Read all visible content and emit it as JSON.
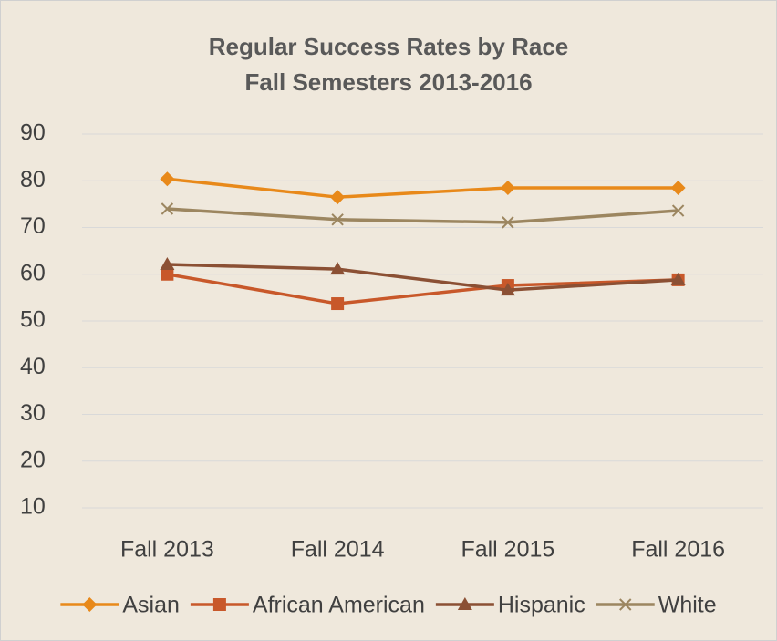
{
  "chart_data": {
    "type": "line",
    "title": "Regular Success Rates by Race",
    "subtitle": "Fall Semesters 2013-2016",
    "categories": [
      "Fall 2013",
      "Fall 2014",
      "Fall 2015",
      "Fall 2016"
    ],
    "series": [
      {
        "name": "Asian",
        "color": "#e8891a",
        "marker": "diamond",
        "values": [
          80.4,
          76.5,
          78.5,
          78.5
        ]
      },
      {
        "name": "African American",
        "color": "#c8582a",
        "marker": "square",
        "values": [
          60,
          53.7,
          57.6,
          58.8
        ]
      },
      {
        "name": "Hispanic",
        "color": "#8b5034",
        "marker": "triangle",
        "values": [
          62.1,
          61.1,
          56.6,
          58.8
        ]
      },
      {
        "name": "White",
        "color": "#9c8660",
        "marker": "x",
        "values": [
          74,
          71.7,
          71.1,
          73.6
        ]
      }
    ],
    "ylim": [
      10,
      90
    ],
    "yticks": [
      10,
      20,
      30,
      40,
      50,
      60,
      70,
      80,
      90
    ],
    "grid": true,
    "legend": "bottom"
  }
}
